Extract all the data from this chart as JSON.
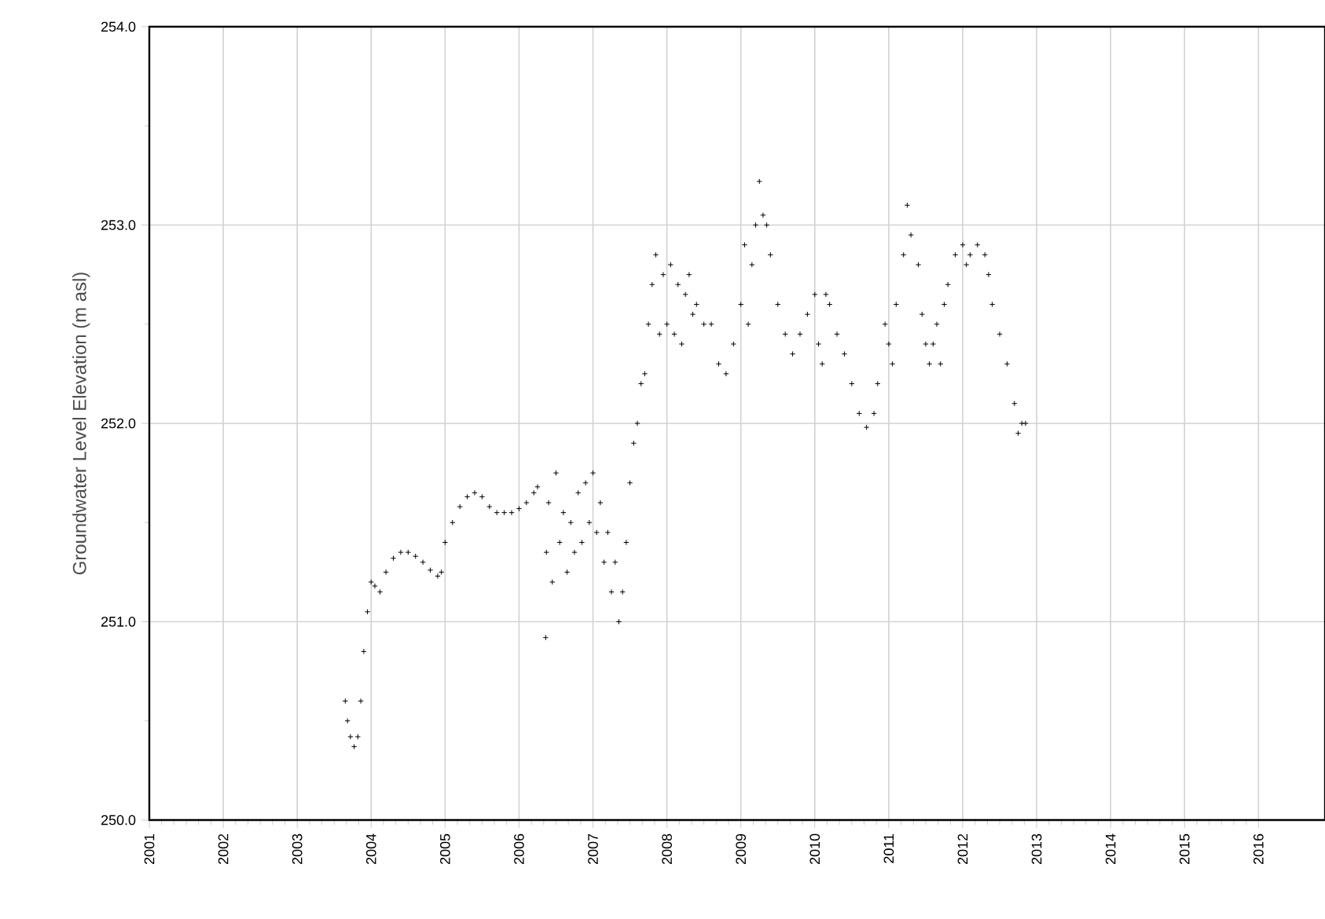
{
  "chart_data": {
    "type": "scatter",
    "ylabel": "Groundwater Level Elevation (m asl)",
    "marker": "cross",
    "grid": true,
    "xlim": [
      2001,
      2016.9
    ],
    "xticks": [
      2001,
      2002,
      2003,
      2004,
      2005,
      2006,
      2007,
      2008,
      2009,
      2010,
      2011,
      2012,
      2013,
      2014,
      2015,
      2016
    ],
    "ylim": [
      250,
      254
    ],
    "yticks": [
      {
        "value": 250,
        "label": "250.0"
      },
      {
        "value": 251,
        "label": "251.0"
      },
      {
        "value": 252,
        "label": "252.0"
      },
      {
        "value": 253,
        "label": "253.0"
      },
      {
        "value": 254,
        "label": "254.0"
      }
    ],
    "series": [
      {
        "color": "#000000",
        "x": [
          2003.65,
          2003.68,
          2003.72,
          2003.77,
          2003.82,
          2003.86,
          2003.9,
          2003.95,
          2004.0,
          2004.05,
          2004.12,
          2004.2,
          2004.3,
          2004.4,
          2004.5,
          2004.6,
          2004.7,
          2004.8,
          2004.9,
          2004.95,
          2005.0,
          2005.1,
          2005.2,
          2005.3,
          2005.4,
          2005.5,
          2005.6,
          2005.7,
          2005.8,
          2005.9,
          2006.0,
          2006.1,
          2006.2,
          2006.25,
          2006.36,
          2006.37,
          2006.4,
          2006.45,
          2006.5,
          2006.55,
          2006.6,
          2006.65,
          2006.7,
          2006.75,
          2006.8,
          2006.85,
          2006.9,
          2006.95,
          2007.0,
          2007.05,
          2007.1,
          2007.15,
          2007.2,
          2007.25,
          2007.3,
          2007.35,
          2007.4,
          2007.45,
          2007.5,
          2007.55,
          2007.6,
          2007.65,
          2007.7,
          2007.75,
          2007.8,
          2007.85,
          2007.9,
          2007.95,
          2008.0,
          2008.05,
          2008.1,
          2008.15,
          2008.2,
          2008.25,
          2008.3,
          2008.35,
          2008.4,
          2008.5,
          2008.6,
          2008.7,
          2008.8,
          2008.9,
          2009.0,
          2009.05,
          2009.1,
          2009.15,
          2009.2,
          2009.25,
          2009.3,
          2009.35,
          2009.4,
          2009.5,
          2009.6,
          2009.7,
          2009.8,
          2009.9,
          2010.0,
          2010.05,
          2010.1,
          2010.15,
          2010.2,
          2010.3,
          2010.4,
          2010.5,
          2010.6,
          2010.7,
          2010.8,
          2010.85,
          2010.95,
          2011.0,
          2011.05,
          2011.1,
          2011.2,
          2011.25,
          2011.3,
          2011.4,
          2011.45,
          2011.5,
          2011.55,
          2011.6,
          2011.65,
          2011.7,
          2011.75,
          2011.8,
          2011.9,
          2012.0,
          2012.05,
          2012.1,
          2012.2,
          2012.3,
          2012.35,
          2012.4,
          2012.5,
          2012.6,
          2012.7,
          2012.75,
          2012.8,
          2012.85
        ],
        "values": [
          250.6,
          250.5,
          250.42,
          250.37,
          250.42,
          250.6,
          250.85,
          251.05,
          251.2,
          251.18,
          251.15,
          251.25,
          251.32,
          251.35,
          251.35,
          251.33,
          251.3,
          251.26,
          251.23,
          251.25,
          251.4,
          251.5,
          251.58,
          251.63,
          251.65,
          251.63,
          251.58,
          251.55,
          251.55,
          251.55,
          251.57,
          251.6,
          251.65,
          251.68,
          250.92,
          251.35,
          251.6,
          251.2,
          251.75,
          251.4,
          251.55,
          251.25,
          251.5,
          251.35,
          251.65,
          251.4,
          251.7,
          251.5,
          251.75,
          251.45,
          251.6,
          251.3,
          251.45,
          251.15,
          251.3,
          251.0,
          251.15,
          251.4,
          251.7,
          251.9,
          252.0,
          252.2,
          252.25,
          252.5,
          252.7,
          252.85,
          252.45,
          252.75,
          252.5,
          252.8,
          252.45,
          252.7,
          252.4,
          252.65,
          252.75,
          252.55,
          252.6,
          252.5,
          252.5,
          252.3,
          252.25,
          252.4,
          252.6,
          252.9,
          252.5,
          252.8,
          253.0,
          253.22,
          253.05,
          253.0,
          252.85,
          252.6,
          252.45,
          252.35,
          252.45,
          252.55,
          252.65,
          252.4,
          252.3,
          252.65,
          252.6,
          252.45,
          252.35,
          252.2,
          252.05,
          251.98,
          252.05,
          252.2,
          252.5,
          252.4,
          252.3,
          252.6,
          252.85,
          253.1,
          252.95,
          252.8,
          252.55,
          252.4,
          252.3,
          252.4,
          252.5,
          252.3,
          252.6,
          252.7,
          252.85,
          252.9,
          252.8,
          252.85,
          252.9,
          252.85,
          252.75,
          252.6,
          252.45,
          252.3,
          252.1,
          251.95,
          252.0,
          252.0
        ]
      }
    ]
  }
}
